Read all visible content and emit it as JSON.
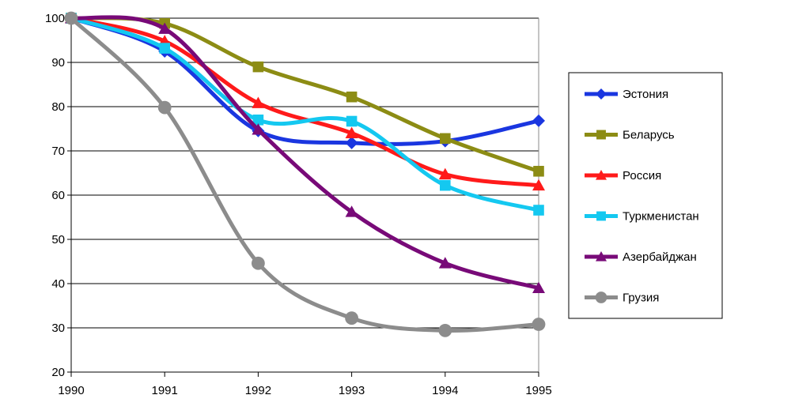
{
  "chart_data": {
    "type": "line",
    "title": "",
    "xlabel": "",
    "ylabel": "",
    "x": [
      1990,
      1991,
      1992,
      1993,
      1994,
      1995
    ],
    "x_tick_labels": [
      "1990",
      "1991",
      "1992",
      "1993",
      "1994",
      "1995"
    ],
    "ylim": [
      20,
      100
    ],
    "y_ticks": [
      20,
      30,
      40,
      50,
      60,
      70,
      80,
      90,
      100
    ],
    "y_tick_labels": [
      "20",
      "30",
      "40",
      "50",
      "60",
      "70",
      "80",
      "90",
      "100"
    ],
    "grid": "horizontal",
    "legend_position": "right",
    "series": [
      {
        "name": "Эстония",
        "color": "#1a36e0",
        "marker": "diamond",
        "values": [
          100,
          92.5,
          74.5,
          71.8,
          72.2,
          76.8
        ]
      },
      {
        "name": "Беларусь",
        "color": "#8c8c14",
        "marker": "square",
        "values": [
          100,
          98.8,
          89.0,
          82.2,
          72.8,
          65.4
        ]
      },
      {
        "name": "Россия",
        "color": "#ff1a1a",
        "marker": "triangle",
        "values": [
          100,
          94.8,
          80.8,
          74.0,
          64.7,
          62.2
        ]
      },
      {
        "name": "Туркменистан",
        "color": "#14c8f0",
        "marker": "square",
        "values": [
          100,
          93.2,
          77.0,
          76.7,
          62.2,
          56.6
        ]
      },
      {
        "name": "Азербайджан",
        "color": "#780a78",
        "marker": "triangle",
        "values": [
          100,
          97.6,
          74.8,
          56.2,
          44.6,
          39.0
        ]
      },
      {
        "name": "Грузия",
        "color": "#8c8c8c",
        "marker": "circle",
        "values": [
          100,
          79.8,
          44.6,
          32.2,
          29.4,
          30.8
        ]
      }
    ]
  }
}
